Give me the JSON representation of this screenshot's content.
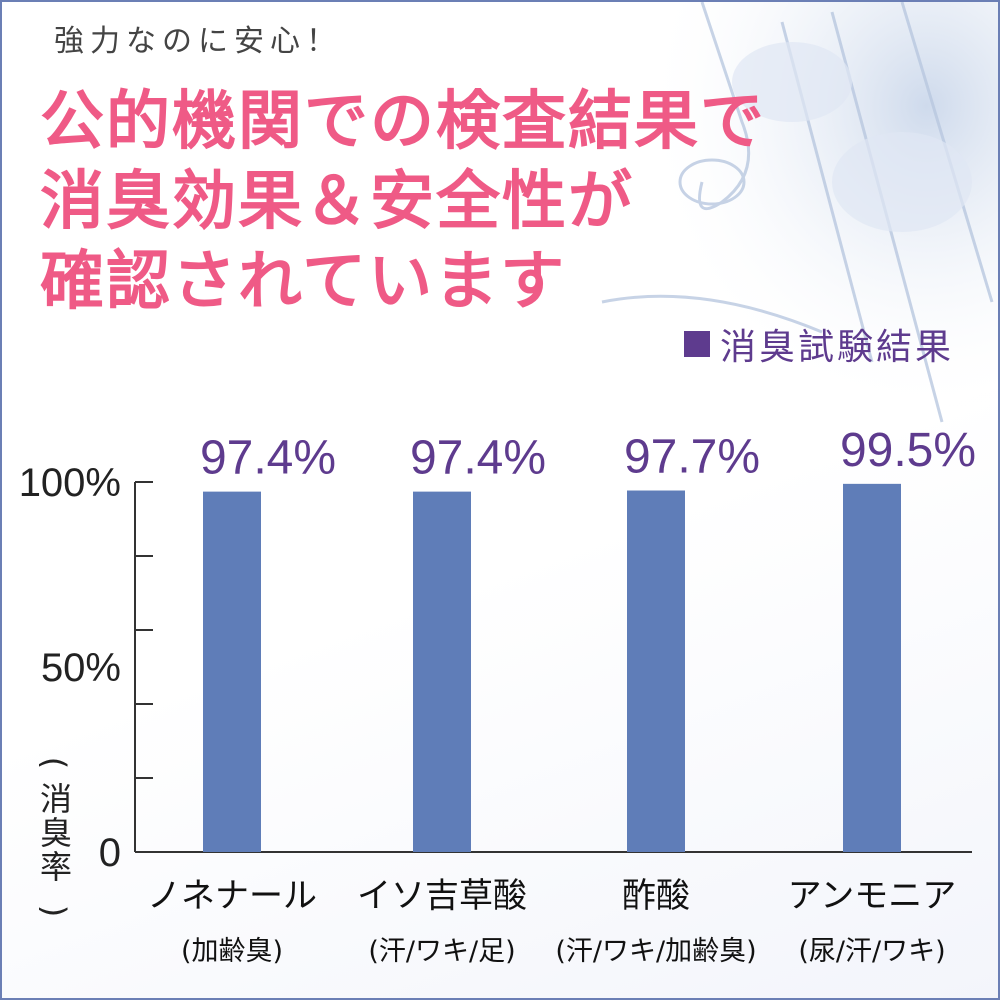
{
  "header": {
    "subtitle": "強力なのに安心！",
    "headline_lines": [
      "公的機関での検査結果で",
      "消臭効果＆安全性が",
      "確認されています"
    ]
  },
  "colors": {
    "headline": "#ef5a86",
    "legend": "#5e3b8e",
    "bar": "#5f7db8",
    "value_label": "#5e3b8e",
    "border": "#6b7fb5"
  },
  "chart_data": {
    "type": "bar",
    "legend": "消臭試験結果",
    "categories": [
      "ノネナール",
      "イソ吉草酸",
      "酢酸",
      "アンモニア"
    ],
    "category_sublabels": [
      "(加齢臭)",
      "(汗/ワキ/足)",
      "(汗/ワキ/加齢臭)",
      "(尿/汗/ワキ)"
    ],
    "series": [
      {
        "values": [
          97.4,
          97.4,
          97.7,
          99.5
        ]
      }
    ],
    "value_labels": [
      "97.4%",
      "97.4%",
      "97.7%",
      "99.5%"
    ],
    "ylabel": "消臭率",
    "ylim": [
      0,
      100
    ],
    "yticks": [
      0,
      50,
      100
    ],
    "ytick_labels": [
      "0",
      "50%",
      "100%"
    ],
    "grid": false
  }
}
